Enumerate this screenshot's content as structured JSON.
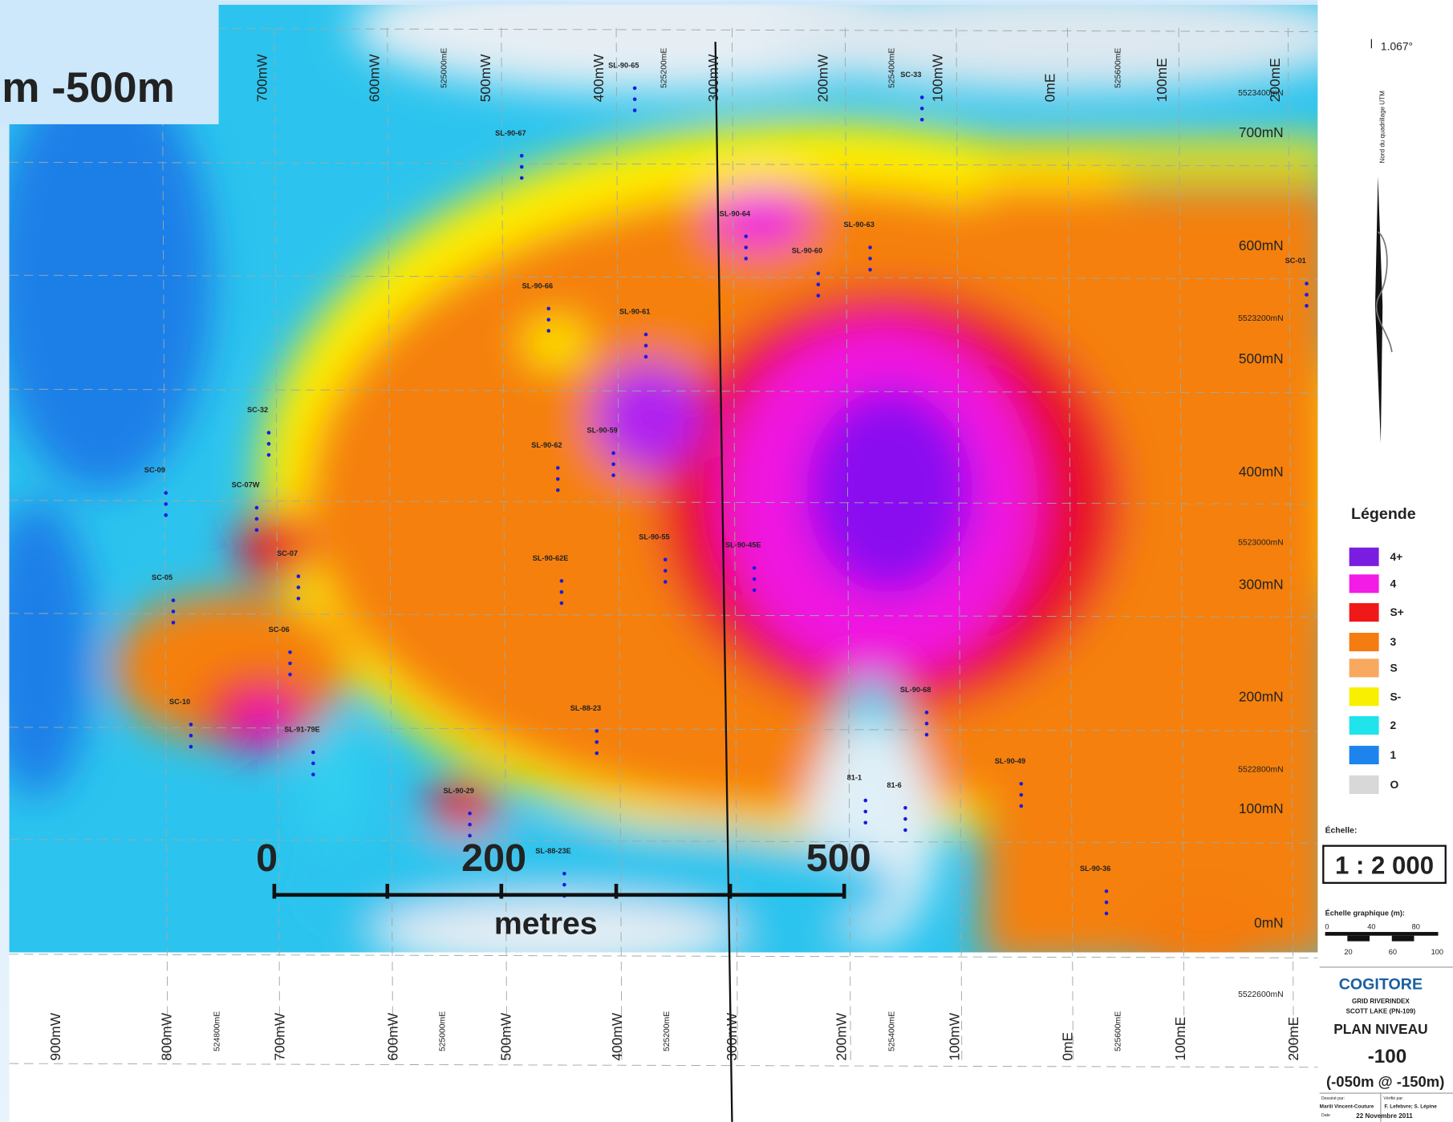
{
  "header": {
    "title": "m -500m"
  },
  "grid": {
    "top_labels": [
      "700mW",
      "600mW",
      "525000mE",
      "500mW",
      "400mW",
      "525200mE",
      "300mW",
      "200mW",
      "525400mE",
      "100mW",
      "0mE",
      "525600mE",
      "100mE",
      "200mE"
    ],
    "right_labels": [
      "5523400mN",
      "700mN",
      "600mN",
      "5523200mN",
      "500mN",
      "400mN",
      "5523000mN",
      "300mN",
      "200mN",
      "5522800mN",
      "100mN",
      "0mN",
      "5522600mN"
    ],
    "bottom_labels": [
      "900mW",
      "800mW",
      "524800mE",
      "700mW",
      "600mW",
      "525000mE",
      "500mW",
      "400mW",
      "525200mE",
      "300mW",
      "200mW",
      "525400mE",
      "100mW",
      "0mE",
      "525600mE",
      "100mE",
      "200mE"
    ]
  },
  "holes": [
    "SL-90-65",
    "SL-90-67",
    "SC-33",
    "SL-90-64",
    "SL-90-63",
    "SL-90-60",
    "SC-01",
    "SL-90-66",
    "SL-90-61",
    "SC-32",
    "SL-90-59",
    "SL-90-62",
    "SC-09",
    "SC-07W",
    "SL-90-55",
    "SL-90-45E",
    "SC-07",
    "SL-90-62E",
    "SC-05",
    "SC-06",
    "SL-90-68",
    "SC-10",
    "SL-88-23",
    "SL-91-79E",
    "SL-90-49",
    "81-1",
    "81-6",
    "SL-90-29",
    "SL-88-23E",
    "SL-90-36"
  ],
  "scale_bar": {
    "ticks": [
      "0",
      "200",
      "500"
    ],
    "unit": "metres"
  },
  "north": {
    "angle": "1.067°",
    "label": "Nord du quadrillage UTM"
  },
  "legend": {
    "title": "Légende",
    "items": [
      {
        "label": "4+",
        "color": "#7a1de0"
      },
      {
        "label": "4",
        "color": "#f21ce6"
      },
      {
        "label": "S+",
        "color": "#f01818"
      },
      {
        "label": "3",
        "color": "#f57c10"
      },
      {
        "label": "S",
        "color": "#f9a860"
      },
      {
        "label": "S-",
        "color": "#f8f000"
      },
      {
        "label": "2",
        "color": "#20e4ec"
      },
      {
        "label": "1",
        "color": "#1c84ec"
      },
      {
        "label": "O",
        "color": "#d8d8d8"
      }
    ]
  },
  "scale": {
    "label": "Échelle:",
    "ratio": "1 : 2 000",
    "graphic": "Échelle graphique (m):",
    "ticks": [
      "0",
      "40",
      "80",
      "20",
      "60",
      "100"
    ]
  },
  "title_block": {
    "company": "COGITORE",
    "lines": [
      "GRID RIVERINDEX",
      "SCOTT LAKE (PN-109)"
    ],
    "plan": "PLAN NIVEAU",
    "level": "-100",
    "range": "(-050m @ -150m)",
    "drawn_label": "Dessiné par:",
    "drawn": "Marili Vincent-Couture",
    "checked_label": "Vérifié par:",
    "checked": "F. Lefebvre; S. Lépine",
    "date_label": "Date",
    "date": "22 Novembre 2011"
  }
}
